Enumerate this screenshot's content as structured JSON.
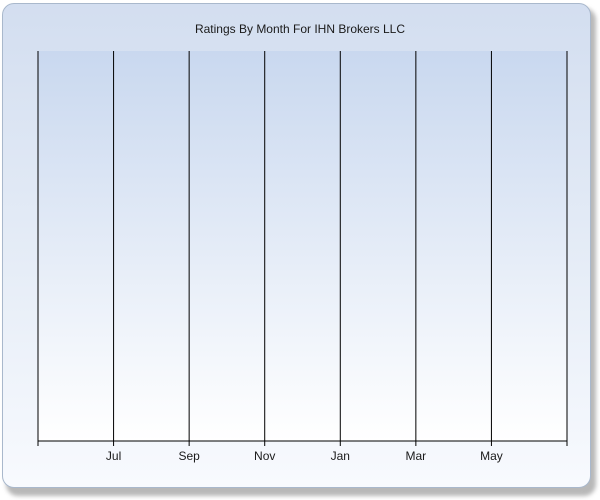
{
  "chart_data": {
    "type": "bar",
    "title": "Ratings By Month For IHN Brokers LLC",
    "xlabel": "",
    "ylabel": "",
    "categories": [
      "",
      "Jul",
      "Sep",
      "Nov",
      "Jan",
      "Mar",
      "May",
      ""
    ],
    "tick_labels": [
      "Jul",
      "Sep",
      "Nov",
      "Jan",
      "Mar",
      "May"
    ],
    "series": [],
    "grid": true,
    "legend": "none"
  },
  "colors": {
    "plot_top": "#c9d8ef",
    "plot_bottom": "#ffffff",
    "gridline": "#000000"
  }
}
